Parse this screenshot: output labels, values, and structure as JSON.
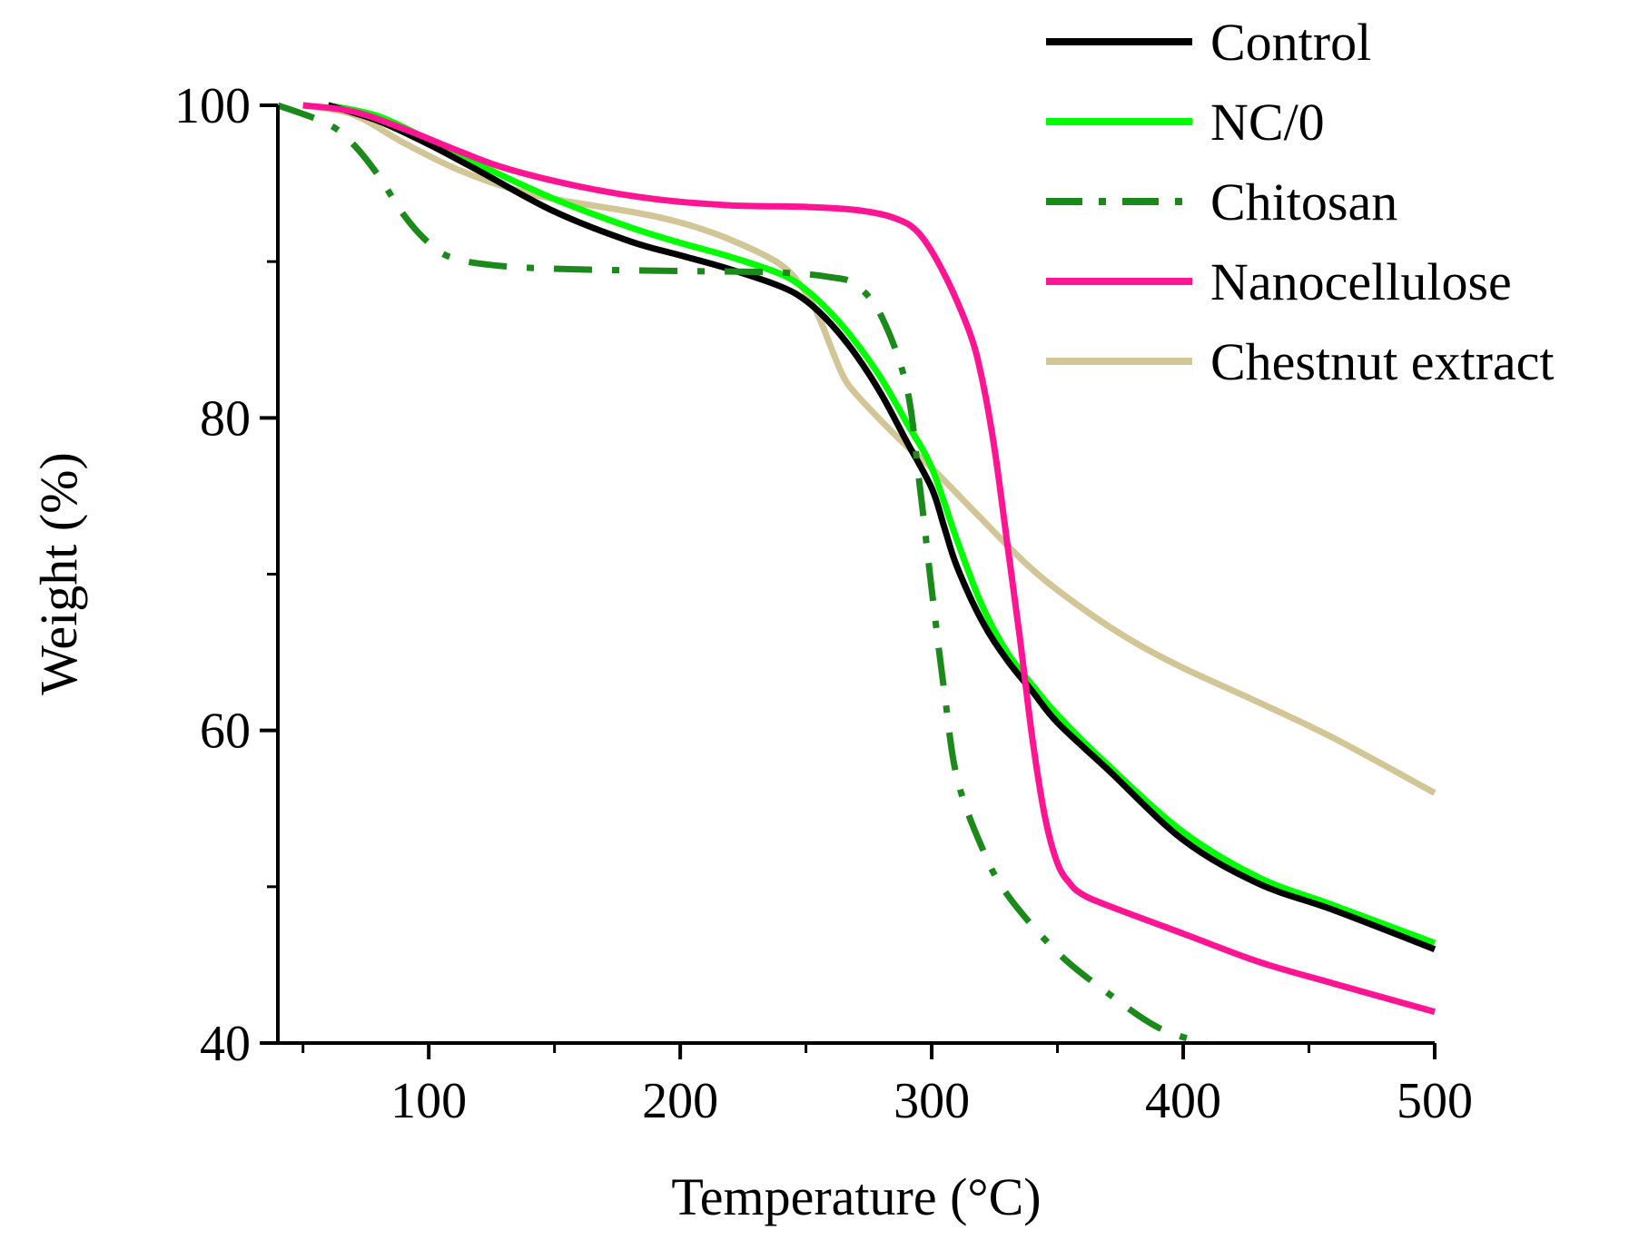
{
  "chart_data": {
    "type": "line",
    "title": "",
    "xlabel": "Temperature (°C)",
    "ylabel": "Weight (%)",
    "xlim": [
      40,
      500
    ],
    "ylim": [
      40,
      100
    ],
    "x_major_ticks": [
      100,
      200,
      300,
      400,
      500
    ],
    "x_minor_ticks": [
      50,
      150,
      250,
      350,
      450
    ],
    "y_major_ticks": [
      40,
      60,
      80,
      100
    ],
    "y_minor_ticks": [
      50,
      70,
      90
    ],
    "x_tick_labels": [
      "100",
      "200",
      "300",
      "400",
      "500"
    ],
    "y_tick_labels": [
      "40",
      "60",
      "80",
      "100"
    ],
    "grid": false,
    "legend_position": "top-right",
    "series": [
      {
        "name": "Control",
        "color": "#000000",
        "style": "solid",
        "x": [
          60,
          80,
          100,
          120,
          150,
          180,
          200,
          220,
          240,
          250,
          260,
          270,
          280,
          290,
          300,
          305,
          310,
          320,
          330,
          340,
          350,
          370,
          400,
          430,
          460,
          500
        ],
        "y": [
          100,
          99,
          97.5,
          95.8,
          93.2,
          91.3,
          90.4,
          89.5,
          88.4,
          87.5,
          86,
          84,
          81.5,
          78.5,
          75.5,
          73,
          70.5,
          67,
          64.5,
          62.5,
          60.5,
          57.5,
          53,
          50.2,
          48.5,
          46
        ]
      },
      {
        "name": "NC/0",
        "color": "#00ff00",
        "style": "solid",
        "x": [
          60,
          80,
          100,
          120,
          150,
          180,
          200,
          220,
          240,
          250,
          260,
          270,
          280,
          290,
          300,
          310,
          320,
          330,
          340,
          350,
          370,
          400,
          430,
          460,
          500
        ],
        "y": [
          100,
          99.3,
          97.8,
          96.2,
          94,
          92.2,
          91.2,
          90.3,
          89.2,
          88.2,
          86.7,
          84.8,
          82.5,
          79.7,
          76.8,
          72.2,
          68,
          65,
          62.9,
          61,
          57.8,
          53.5,
          50.6,
          48.8,
          46.4
        ]
      },
      {
        "name": "Chitosan",
        "color": "#1a8a1a",
        "style": "dashdot",
        "x": [
          40,
          60,
          70,
          80,
          90,
          100,
          110,
          130,
          160,
          200,
          240,
          260,
          270,
          280,
          290,
          295,
          300,
          305,
          310,
          320,
          330,
          350,
          370,
          390,
          410
        ],
        "y": [
          100,
          98.8,
          97.5,
          95.5,
          93,
          91.2,
          90.2,
          89.7,
          89.5,
          89.4,
          89.3,
          89,
          88.5,
          86.5,
          82,
          76,
          69,
          62.5,
          57,
          52.5,
          49.5,
          45.8,
          43.2,
          41,
          39.9
        ]
      },
      {
        "name": "Nanocellulose",
        "color": "#ff1493",
        "style": "solid",
        "x": [
          50,
          70,
          90,
          110,
          130,
          160,
          190,
          220,
          250,
          270,
          285,
          295,
          305,
          315,
          320,
          325,
          330,
          335,
          340,
          345,
          350,
          355,
          360,
          370,
          400,
          430,
          460,
          500
        ],
        "y": [
          100,
          99.6,
          98.5,
          97.2,
          96,
          94.8,
          94,
          93.6,
          93.5,
          93.3,
          92.8,
          91.8,
          89.2,
          85.5,
          82.5,
          78,
          72,
          66,
          59.5,
          54.5,
          51.5,
          50.2,
          49.5,
          48.8,
          47,
          45.2,
          43.8,
          42
        ]
      },
      {
        "name": "Chestnut extract",
        "color": "#d2c596",
        "style": "solid",
        "x": [
          50,
          70,
          90,
          110,
          130,
          150,
          180,
          200,
          220,
          240,
          250,
          255,
          260,
          265,
          270,
          280,
          290,
          300,
          320,
          340,
          360,
          380,
          400,
          430,
          460,
          500
        ],
        "y": [
          100,
          99.4,
          97.6,
          96,
          94.8,
          94,
          93.2,
          92.5,
          91.4,
          89.8,
          88,
          86.5,
          84.5,
          82.6,
          81.5,
          79.8,
          78.2,
          76.8,
          73.5,
          70.3,
          67.8,
          65.7,
          64,
          61.8,
          59.5,
          56
        ]
      }
    ]
  }
}
